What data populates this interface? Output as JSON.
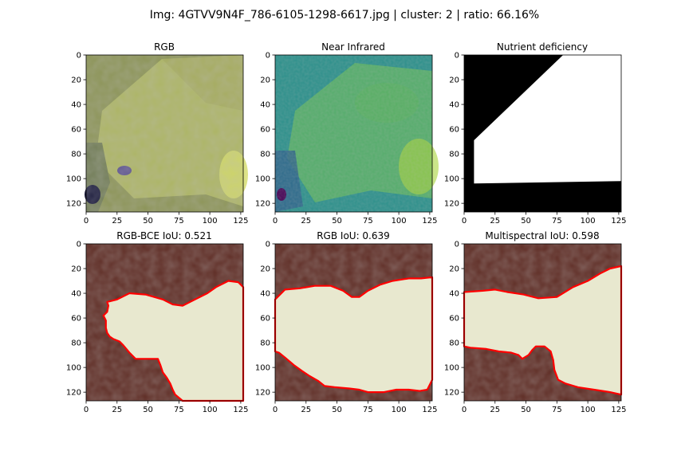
{
  "suptitle": "Img: 4GTVV9N4F_786-6105-1298-6617.jpg | cluster: 2 | ratio: 66.16%",
  "colors": {
    "mask_fg": "#ffffff",
    "mask_bg": "#000000",
    "overlay_outside": "#5e2b23",
    "overlay_inside": "#e8e8cf",
    "contour": "#ff0000",
    "rgb_base": "#8c9457",
    "nir_base": "#2a8f8a"
  },
  "chart_data": [
    {
      "type": "image",
      "title": "RGB",
      "x_ticks": [
        0,
        25,
        50,
        75,
        100,
        125
      ],
      "y_ticks": [
        0,
        20,
        40,
        60,
        80,
        100,
        120
      ],
      "xlim": [
        0,
        127
      ],
      "ylim": [
        127,
        0
      ]
    },
    {
      "type": "image",
      "title": "Near Infrared",
      "x_ticks": [
        0,
        25,
        50,
        75,
        100,
        125
      ],
      "y_ticks": [
        0,
        20,
        40,
        60,
        80,
        100,
        120
      ],
      "xlim": [
        0,
        127
      ],
      "ylim": [
        127,
        0
      ]
    },
    {
      "type": "image",
      "title": "Nutrient deficiency",
      "x_ticks": [
        0,
        25,
        50,
        75,
        100,
        125
      ],
      "y_ticks": [
        0,
        20,
        40,
        60,
        80,
        100,
        120
      ],
      "xlim": [
        0,
        127
      ],
      "ylim": [
        127,
        0
      ],
      "mask_polygon": [
        [
          8,
          104
        ],
        [
          8,
          69
        ],
        [
          80,
          0
        ],
        [
          127,
          0
        ],
        [
          127,
          102
        ]
      ]
    },
    {
      "type": "image",
      "title": "RGB-BCE IoU: 0.521",
      "x_ticks": [
        0,
        25,
        50,
        75,
        100,
        125
      ],
      "y_ticks": [
        0,
        20,
        40,
        60,
        80,
        100,
        120
      ],
      "xlim": [
        0,
        127
      ],
      "ylim": [
        127,
        0
      ],
      "mask_polygon": [
        [
          17,
          47
        ],
        [
          25,
          45
        ],
        [
          35,
          40
        ],
        [
          48,
          41
        ],
        [
          62,
          45
        ],
        [
          70,
          49
        ],
        [
          78,
          50
        ],
        [
          88,
          45
        ],
        [
          98,
          40
        ],
        [
          105,
          35
        ],
        [
          115,
          30
        ],
        [
          123,
          31
        ],
        [
          127,
          35
        ],
        [
          127,
          127
        ],
        [
          78,
          127
        ],
        [
          72,
          122
        ],
        [
          70,
          118
        ],
        [
          68,
          113
        ],
        [
          65,
          108
        ],
        [
          62,
          104
        ],
        [
          60,
          98
        ],
        [
          58,
          93
        ],
        [
          40,
          93
        ],
        [
          35,
          88
        ],
        [
          30,
          82
        ],
        [
          27,
          79
        ],
        [
          22,
          77
        ],
        [
          19,
          75
        ],
        [
          17,
          72
        ],
        [
          16,
          68
        ],
        [
          16,
          62
        ],
        [
          14,
          58
        ],
        [
          17,
          55
        ],
        [
          18,
          50
        ]
      ]
    },
    {
      "type": "image",
      "title": "RGB IoU: 0.639",
      "x_ticks": [
        0,
        25,
        50,
        75,
        100,
        125
      ],
      "y_ticks": [
        0,
        20,
        40,
        60,
        80,
        100,
        120
      ],
      "xlim": [
        0,
        127
      ],
      "ylim": [
        127,
        0
      ],
      "mask_polygon": [
        [
          0,
          45
        ],
        [
          8,
          37
        ],
        [
          20,
          36
        ],
        [
          32,
          34
        ],
        [
          45,
          34
        ],
        [
          55,
          38
        ],
        [
          62,
          43
        ],
        [
          68,
          43
        ],
        [
          75,
          38
        ],
        [
          85,
          33
        ],
        [
          95,
          30
        ],
        [
          108,
          28
        ],
        [
          118,
          28
        ],
        [
          127,
          27
        ],
        [
          127,
          110
        ],
        [
          123,
          118
        ],
        [
          117,
          119
        ],
        [
          108,
          118
        ],
        [
          98,
          118
        ],
        [
          88,
          120
        ],
        [
          75,
          120
        ],
        [
          68,
          118
        ],
        [
          60,
          117
        ],
        [
          48,
          116
        ],
        [
          40,
          115
        ],
        [
          35,
          111
        ],
        [
          28,
          107
        ],
        [
          22,
          103
        ],
        [
          15,
          98
        ],
        [
          8,
          92
        ],
        [
          3,
          88
        ],
        [
          0,
          87
        ]
      ]
    },
    {
      "type": "image",
      "title": "Multispectral IoU: 0.598",
      "x_ticks": [
        0,
        25,
        50,
        75,
        100,
        125
      ],
      "y_ticks": [
        0,
        20,
        40,
        60,
        80,
        100,
        120
      ],
      "xlim": [
        0,
        127
      ],
      "ylim": [
        127,
        0
      ],
      "mask_polygon": [
        [
          0,
          39
        ],
        [
          15,
          38
        ],
        [
          25,
          37
        ],
        [
          35,
          39
        ],
        [
          48,
          41
        ],
        [
          60,
          44
        ],
        [
          75,
          43
        ],
        [
          88,
          35
        ],
        [
          100,
          30
        ],
        [
          110,
          24
        ],
        [
          118,
          20
        ],
        [
          127,
          18
        ],
        [
          127,
          122
        ],
        [
          118,
          120
        ],
        [
          105,
          118
        ],
        [
          92,
          116
        ],
        [
          82,
          113
        ],
        [
          76,
          110
        ],
        [
          73,
          102
        ],
        [
          72,
          94
        ],
        [
          70,
          87
        ],
        [
          65,
          83
        ],
        [
          58,
          83
        ],
        [
          55,
          86
        ],
        [
          52,
          90
        ],
        [
          47,
          93
        ],
        [
          44,
          90
        ],
        [
          38,
          88
        ],
        [
          28,
          87
        ],
        [
          18,
          85
        ],
        [
          5,
          84
        ],
        [
          0,
          83
        ]
      ]
    }
  ]
}
